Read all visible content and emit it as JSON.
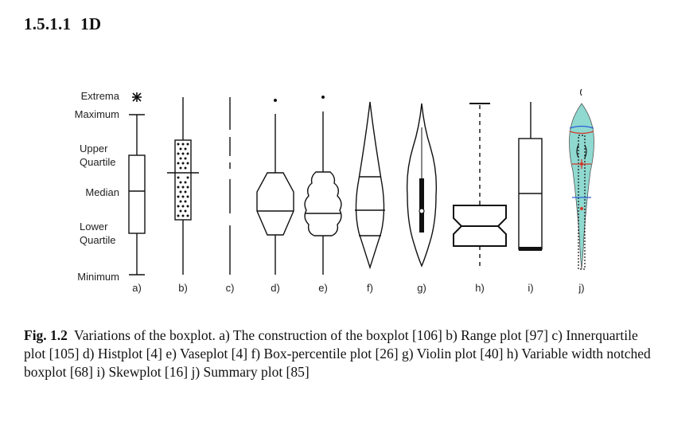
{
  "section": {
    "number": "1.5.1.1",
    "title": "1D"
  },
  "figure": {
    "row_labels": {
      "extrema": "Extrema",
      "maximum": "Maximum",
      "upper_quartile": [
        "Upper",
        "Quartile"
      ],
      "median": "Median",
      "lower_quartile": [
        "Lower",
        "Quartile"
      ],
      "minimum": "Minimum"
    },
    "panel_labels": [
      "a)",
      "b)",
      "c)",
      "d)",
      "e)",
      "f)",
      "g)",
      "h)",
      "i)",
      "j)"
    ],
    "colors": {
      "ink": "#111111",
      "summary_fill": "#8fd9d0",
      "summary_red": "#d23a2a",
      "summary_blue": "#2c5fd6"
    }
  },
  "caption": {
    "label": "Fig. 1.2",
    "text": "Variations of the boxplot. a) The construction of the boxplot [106] b) Range plot [97] c) Innerquartile plot [105] d) Histplot [4] e) Vaseplot [4] f) Box-percentile plot [26] g) Violin plot [40] h) Variable width notched boxplot [68] i) Skewplot [16] j) Summary plot [85]"
  }
}
